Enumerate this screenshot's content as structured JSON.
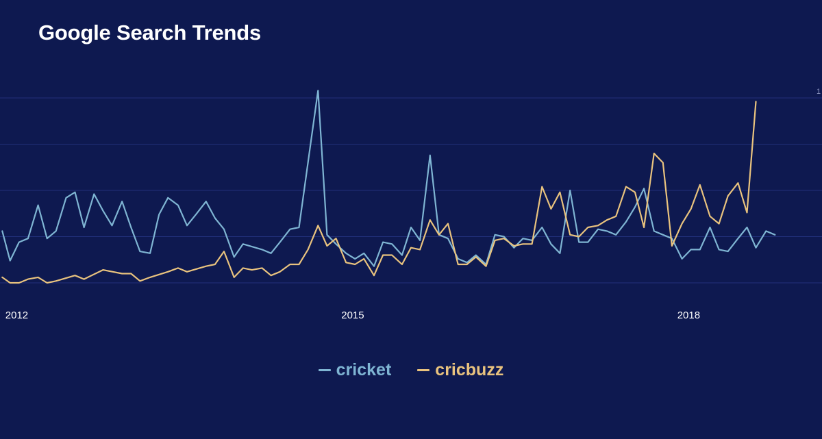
{
  "title": "Google Search Trends",
  "chart_data": {
    "type": "line",
    "title": "Google Search Trends",
    "xlabel": "",
    "ylabel": "",
    "x_ticks": [
      {
        "label": "2012",
        "value": 2012.0
      },
      {
        "label": "2015",
        "value": 2015.0
      },
      {
        "label": "2018",
        "value": 2018.0
      }
    ],
    "y_tick_label": "1",
    "y_tick_value": 100,
    "xlim": [
      2011.83,
      2019.17
    ],
    "ylim": [
      0,
      100
    ],
    "grid": true,
    "legend_position": "bottom-center",
    "series": [
      {
        "name": "cricket",
        "color": "#7fb5d3",
        "points": [
          [
            2011.85,
            28
          ],
          [
            2011.92,
            12
          ],
          [
            2012.0,
            22
          ],
          [
            2012.08,
            24
          ],
          [
            2012.17,
            42
          ],
          [
            2012.25,
            24
          ],
          [
            2012.33,
            28
          ],
          [
            2012.42,
            46
          ],
          [
            2012.5,
            49
          ],
          [
            2012.58,
            30
          ],
          [
            2012.67,
            48
          ],
          [
            2012.75,
            39
          ],
          [
            2012.83,
            31
          ],
          [
            2012.92,
            44
          ],
          [
            2013.0,
            30
          ],
          [
            2013.08,
            17
          ],
          [
            2013.17,
            16
          ],
          [
            2013.25,
            37
          ],
          [
            2013.33,
            46
          ],
          [
            2013.42,
            42
          ],
          [
            2013.5,
            31
          ],
          [
            2013.58,
            37
          ],
          [
            2013.67,
            44
          ],
          [
            2013.75,
            35
          ],
          [
            2013.83,
            29
          ],
          [
            2013.92,
            14
          ],
          [
            2014.0,
            21
          ],
          [
            2014.17,
            18
          ],
          [
            2014.25,
            16
          ],
          [
            2014.33,
            22
          ],
          [
            2014.42,
            29
          ],
          [
            2014.5,
            30
          ],
          [
            2014.58,
            65
          ],
          [
            2014.67,
            104
          ],
          [
            2014.75,
            26
          ],
          [
            2014.83,
            21
          ],
          [
            2014.92,
            16
          ],
          [
            2015.0,
            13
          ],
          [
            2015.08,
            16
          ],
          [
            2015.17,
            9
          ],
          [
            2015.25,
            22
          ],
          [
            2015.33,
            21
          ],
          [
            2015.42,
            15
          ],
          [
            2015.5,
            30
          ],
          [
            2015.58,
            23
          ],
          [
            2015.67,
            69
          ],
          [
            2015.75,
            26
          ],
          [
            2015.83,
            24
          ],
          [
            2015.92,
            13
          ],
          [
            2016.0,
            11
          ],
          [
            2016.08,
            15
          ],
          [
            2016.17,
            10
          ],
          [
            2016.25,
            26
          ],
          [
            2016.33,
            25
          ],
          [
            2016.42,
            19
          ],
          [
            2016.5,
            24
          ],
          [
            2016.58,
            23
          ],
          [
            2016.67,
            30
          ],
          [
            2016.75,
            21
          ],
          [
            2016.83,
            16
          ],
          [
            2016.92,
            50
          ],
          [
            2017.0,
            22
          ],
          [
            2017.08,
            22
          ],
          [
            2017.17,
            29
          ],
          [
            2017.25,
            28
          ],
          [
            2017.33,
            26
          ],
          [
            2017.42,
            33
          ],
          [
            2017.5,
            41
          ],
          [
            2017.58,
            51
          ],
          [
            2017.67,
            28
          ],
          [
            2017.75,
            26
          ],
          [
            2017.83,
            24
          ],
          [
            2017.92,
            13
          ],
          [
            2018.0,
            18
          ],
          [
            2018.08,
            18
          ],
          [
            2018.17,
            30
          ],
          [
            2018.25,
            18
          ],
          [
            2018.33,
            17
          ],
          [
            2018.42,
            24
          ],
          [
            2018.5,
            30
          ],
          [
            2018.58,
            19
          ],
          [
            2018.67,
            28
          ],
          [
            2018.75,
            26
          ]
        ]
      },
      {
        "name": "cricbuzz",
        "color": "#e9c37e",
        "points": [
          [
            2011.85,
            3
          ],
          [
            2011.92,
            0
          ],
          [
            2012.0,
            0
          ],
          [
            2012.08,
            2
          ],
          [
            2012.17,
            3
          ],
          [
            2012.25,
            0
          ],
          [
            2012.33,
            1
          ],
          [
            2012.5,
            4
          ],
          [
            2012.58,
            2
          ],
          [
            2012.75,
            7
          ],
          [
            2012.92,
            5
          ],
          [
            2013.0,
            5
          ],
          [
            2013.08,
            1
          ],
          [
            2013.17,
            3
          ],
          [
            2013.33,
            6
          ],
          [
            2013.42,
            8
          ],
          [
            2013.5,
            6
          ],
          [
            2013.67,
            9
          ],
          [
            2013.75,
            10
          ],
          [
            2013.83,
            17
          ],
          [
            2013.92,
            3
          ],
          [
            2014.0,
            8
          ],
          [
            2014.08,
            7
          ],
          [
            2014.17,
            8
          ],
          [
            2014.25,
            4
          ],
          [
            2014.33,
            6
          ],
          [
            2014.42,
            10
          ],
          [
            2014.5,
            10
          ],
          [
            2014.58,
            18
          ],
          [
            2014.67,
            31
          ],
          [
            2014.75,
            20
          ],
          [
            2014.83,
            24
          ],
          [
            2014.92,
            11
          ],
          [
            2015.0,
            10
          ],
          [
            2015.08,
            13
          ],
          [
            2015.17,
            4
          ],
          [
            2015.25,
            15
          ],
          [
            2015.33,
            15
          ],
          [
            2015.42,
            10
          ],
          [
            2015.5,
            19
          ],
          [
            2015.58,
            18
          ],
          [
            2015.67,
            34
          ],
          [
            2015.75,
            26
          ],
          [
            2015.83,
            32
          ],
          [
            2015.92,
            10
          ],
          [
            2016.0,
            10
          ],
          [
            2016.08,
            14
          ],
          [
            2016.17,
            9
          ],
          [
            2016.25,
            23
          ],
          [
            2016.33,
            24
          ],
          [
            2016.42,
            20
          ],
          [
            2016.5,
            21
          ],
          [
            2016.58,
            21
          ],
          [
            2016.67,
            52
          ],
          [
            2016.75,
            40
          ],
          [
            2016.83,
            49
          ],
          [
            2016.92,
            26
          ],
          [
            2017.0,
            25
          ],
          [
            2017.08,
            30
          ],
          [
            2017.17,
            31
          ],
          [
            2017.25,
            34
          ],
          [
            2017.33,
            36
          ],
          [
            2017.42,
            52
          ],
          [
            2017.5,
            49
          ],
          [
            2017.58,
            30
          ],
          [
            2017.67,
            70
          ],
          [
            2017.75,
            65
          ],
          [
            2017.83,
            20
          ],
          [
            2017.92,
            32
          ],
          [
            2018.0,
            40
          ],
          [
            2018.08,
            53
          ],
          [
            2018.17,
            36
          ],
          [
            2018.25,
            32
          ],
          [
            2018.33,
            47
          ],
          [
            2018.42,
            54
          ],
          [
            2018.5,
            38
          ],
          [
            2018.58,
            98
          ]
        ]
      }
    ]
  }
}
